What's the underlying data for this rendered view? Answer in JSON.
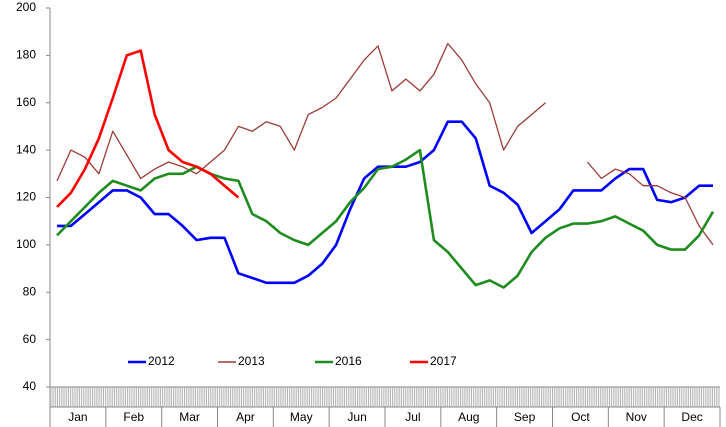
{
  "chart_data": {
    "type": "line",
    "categories": [
      null,
      "Jan",
      null,
      null,
      null,
      "Feb",
      null,
      null,
      null,
      "Mar",
      null,
      null,
      null,
      "Apr",
      null,
      null,
      null,
      "May",
      null,
      null,
      null,
      "Jun",
      null,
      null,
      null,
      "Jul",
      null,
      null,
      null,
      "Aug",
      null,
      null,
      null,
      "Sep",
      null,
      null,
      null,
      "Oct",
      null,
      null,
      null,
      "Nov",
      null,
      null,
      null,
      "Dec",
      null,
      null
    ],
    "series": [
      {
        "name": "2012",
        "color": "#0000ff",
        "values": [
          108,
          108,
          113,
          118,
          123,
          123,
          120,
          113,
          113,
          108,
          102,
          103,
          103,
          88,
          86,
          84,
          84,
          84,
          87,
          92,
          100,
          115,
          128,
          133,
          133,
          133,
          135,
          140,
          152,
          152,
          145,
          125,
          122,
          117,
          105,
          110,
          115,
          123,
          123,
          123,
          128,
          132,
          132,
          119,
          118,
          120,
          125,
          125
        ]
      },
      {
        "name": "2013",
        "color": "#9e3b36",
        "values": [
          127,
          140,
          137,
          130,
          148,
          138,
          128,
          132,
          135,
          133,
          130,
          135,
          140,
          150,
          148,
          152,
          150,
          140,
          155,
          158,
          162,
          170,
          178,
          184,
          165,
          170,
          165,
          172,
          185,
          178,
          168,
          160,
          140,
          150,
          155,
          160,
          null,
          null,
          135,
          128,
          132,
          130,
          125,
          125,
          122,
          120,
          108,
          100
        ]
      },
      {
        "name": "2016",
        "color": "#1e8c1e",
        "values": [
          104,
          110,
          116,
          122,
          127,
          125,
          123,
          128,
          130,
          130,
          133,
          130,
          128,
          127,
          113,
          110,
          105,
          102,
          100,
          105,
          110,
          118,
          124,
          132,
          133,
          136,
          140,
          102,
          97,
          90,
          83,
          85,
          82,
          87,
          97,
          103,
          107,
          109,
          109,
          110,
          112,
          109,
          106,
          100,
          98,
          98,
          104,
          114
        ]
      },
      {
        "name": "2017",
        "color": "#ff0000",
        "values": [
          116,
          122,
          132,
          145,
          162,
          180,
          182,
          155,
          140,
          135,
          133,
          130,
          125,
          120,
          null,
          null,
          null,
          null,
          null,
          null,
          null,
          null,
          null,
          null,
          null,
          null,
          null,
          null,
          null,
          null,
          null,
          null,
          null,
          null,
          null,
          null,
          null,
          null,
          null,
          null,
          null,
          null,
          null,
          null,
          null,
          null,
          null,
          null
        ]
      }
    ],
    "ylim": [
      40,
      200
    ],
    "yticks": [
      40,
      60,
      80,
      100,
      120,
      140,
      160,
      180,
      200
    ],
    "grid": false
  }
}
